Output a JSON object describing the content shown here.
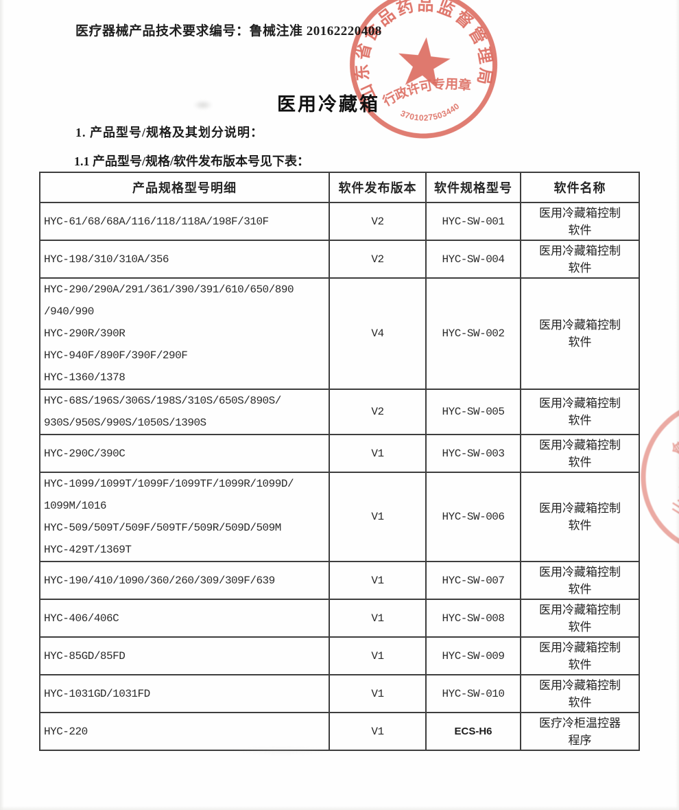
{
  "page": {
    "doc_number_line": "医疗器械产品技术要求编号：鲁械注准 20162220408",
    "title": "医用冷藏箱",
    "section_1": "1. 产品型号/规格及其划分说明：",
    "section_1_1": "1.1 产品型号/规格/软件发布版本号见下表："
  },
  "stamp": {
    "org_text": "山东省食品药品监督管理局",
    "sub_text": "行政许可专用章",
    "number": "3701027503440",
    "color": "#d5493a"
  },
  "side_stamp": {
    "partial_text": "山东省食",
    "color": "#d5493a"
  },
  "table": {
    "headers": [
      "产品规格型号明细",
      "软件发布版本",
      "软件规格型号",
      "软件名称"
    ],
    "rows": [
      {
        "models": [
          "HYC-61/68/68A/116/118/118A/198F/310F"
        ],
        "version": "V2",
        "sw_model": "HYC-SW-001",
        "name_lines": [
          "医用冷藏箱控制",
          "软件"
        ]
      },
      {
        "models": [
          "HYC-198/310/310A/356"
        ],
        "version": "V2",
        "sw_model": "HYC-SW-004",
        "name_lines": [
          "医用冷藏箱控制",
          "软件"
        ]
      },
      {
        "models": [
          "HYC-290/290A/291/361/390/391/610/650/890",
          "/940/990",
          "HYC-290R/390R",
          "HYC-940F/890F/390F/290F",
          "HYC-1360/1378"
        ],
        "version": "V4",
        "sw_model": "HYC-SW-002",
        "name_lines": [
          "医用冷藏箱控制",
          "软件"
        ]
      },
      {
        "models": [
          "HYC-68S/196S/306S/198S/310S/650S/890S/",
          "930S/950S/990S/1050S/1390S"
        ],
        "version": "V2",
        "sw_model": "HYC-SW-005",
        "name_lines": [
          "医用冷藏箱控制",
          "软件"
        ]
      },
      {
        "models": [
          "HYC-290C/390C"
        ],
        "version": "V1",
        "sw_model": "HYC-SW-003",
        "name_lines": [
          "医用冷藏箱控制",
          "软件"
        ]
      },
      {
        "models": [
          "HYC-1099/1099T/1099F/1099TF/1099R/1099D/",
          "1099M/1016",
          "HYC-509/509T/509F/509TF/509R/509D/509M",
          "HYC-429T/1369T"
        ],
        "version": "V1",
        "sw_model": "HYC-SW-006",
        "name_lines": [
          "医用冷藏箱控制",
          "软件"
        ]
      },
      {
        "models": [
          "HYC-190/410/1090/360/260/309/309F/639"
        ],
        "version": "V1",
        "sw_model": "HYC-SW-007",
        "name_lines": [
          "医用冷藏箱控制",
          "软件"
        ]
      },
      {
        "models": [
          "HYC-406/406C"
        ],
        "version": "V1",
        "sw_model": "HYC-SW-008",
        "name_lines": [
          "医用冷藏箱控制",
          "软件"
        ]
      },
      {
        "models": [
          "HYC-85GD/85FD"
        ],
        "version": "V1",
        "sw_model": "HYC-SW-009",
        "name_lines": [
          "医用冷藏箱控制",
          "软件"
        ]
      },
      {
        "models": [
          "HYC-1031GD/1031FD"
        ],
        "version": "V1",
        "sw_model": "HYC-SW-010",
        "name_lines": [
          "医用冷藏箱控制",
          "软件"
        ]
      },
      {
        "models": [
          "HYC-220"
        ],
        "version": "V1",
        "sw_model": "ECS-H6",
        "name_lines": [
          "医疗冷柜温控器",
          "程序"
        ]
      }
    ]
  }
}
